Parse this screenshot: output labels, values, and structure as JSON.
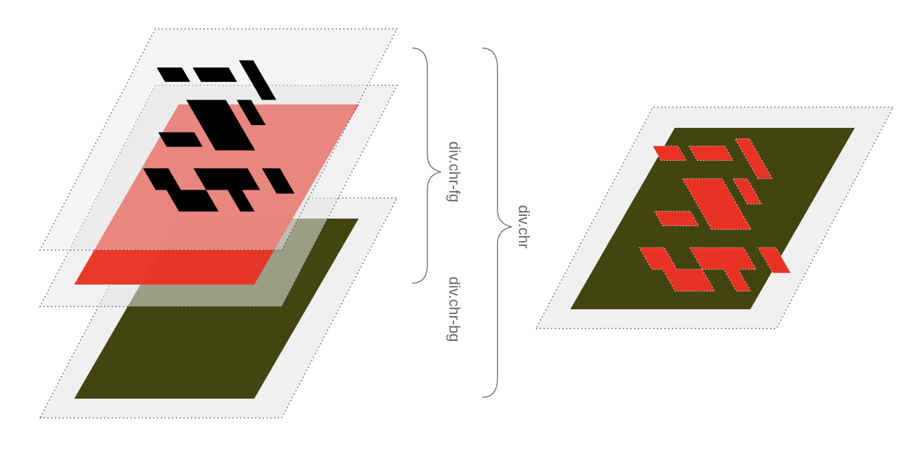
{
  "labels": {
    "fg": "div.chr-fg",
    "bg": "div.chr-bg",
    "chr": "div.chr"
  },
  "colors": {
    "plane": "#f0f0f0",
    "plane_border": "#333333",
    "background_layer": "#434511",
    "foreground_layer": "#e83324",
    "glyph": "#000000",
    "brace": "#777777",
    "label": "#666666"
  }
}
